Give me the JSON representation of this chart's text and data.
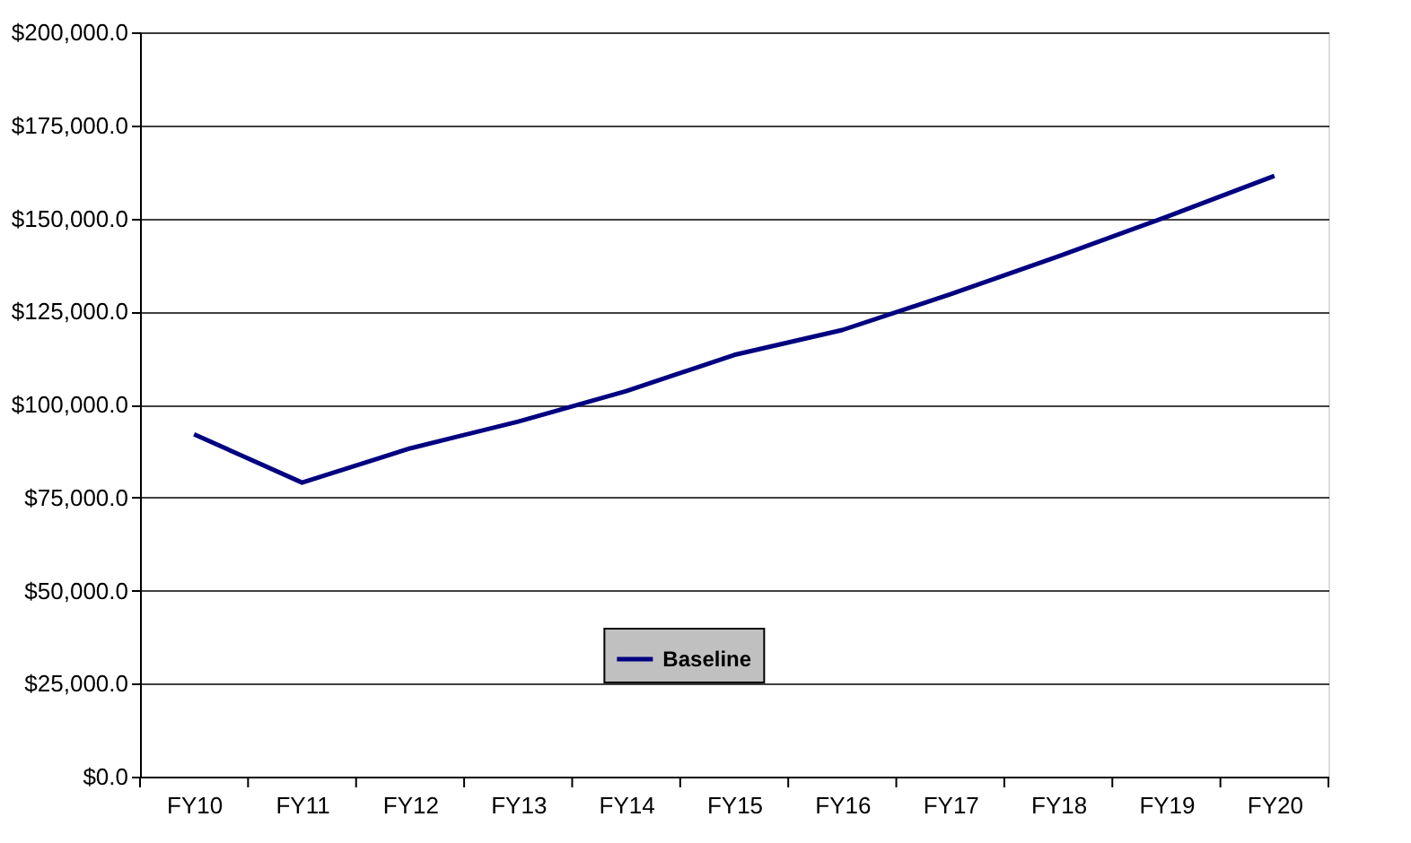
{
  "chart_data": {
    "type": "line",
    "categories": [
      "FY10",
      "FY11",
      "FY12",
      "FY13",
      "FY14",
      "FY15",
      "FY16",
      "FY17",
      "FY18",
      "FY19",
      "FY20"
    ],
    "series": [
      {
        "name": "Baseline",
        "color": "#000080",
        "values": [
          92000,
          79000,
          88200,
          95400,
          103600,
          113300,
          120000,
          129600,
          139800,
          150400,
          161400
        ]
      }
    ],
    "ylim": [
      0,
      200000
    ],
    "yticks": [
      {
        "value": 0,
        "label": "$0.0"
      },
      {
        "value": 25000,
        "label": "$25,000.0"
      },
      {
        "value": 50000,
        "label": "$50,000.0"
      },
      {
        "value": 75000,
        "label": "$75,000.0"
      },
      {
        "value": 100000,
        "label": "$100,000.0"
      },
      {
        "value": 125000,
        "label": "$125,000.0"
      },
      {
        "value": 150000,
        "label": "$150,000.0"
      },
      {
        "value": 175000,
        "label": "$175,000.0"
      },
      {
        "value": 200000,
        "label": "$200,000.0"
      }
    ],
    "grid": "y",
    "legend": "bottom",
    "marker": "none",
    "line_style": "solid"
  }
}
